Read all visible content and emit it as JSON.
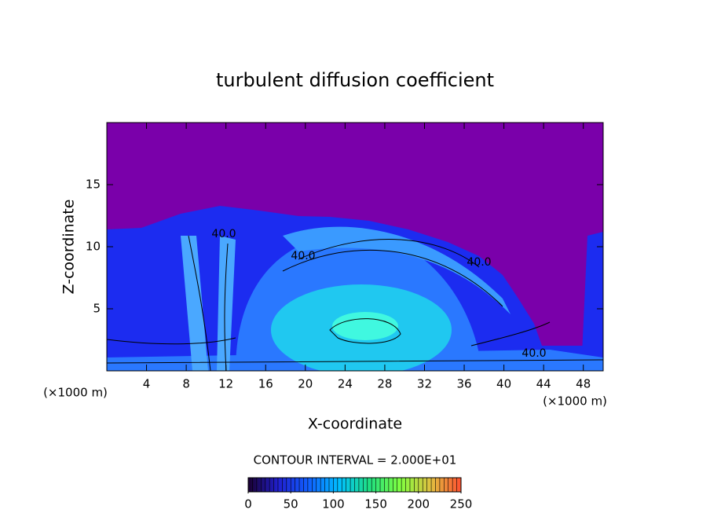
{
  "chart_data": {
    "type": "contour",
    "title": "turbulent diffusion coefficient",
    "x_label": "X-coordinate",
    "y_label": "Z-coordinate",
    "x_unit": "(×1000 m)",
    "xlim": [
      0,
      50
    ],
    "xticks": [
      4,
      8,
      12,
      16,
      20,
      24,
      28,
      32,
      36,
      40,
      44,
      48
    ],
    "ylim": [
      0,
      20
    ],
    "yticks": [
      5,
      10,
      15
    ],
    "contour_interval_text": "CONTOUR INTERVAL = 2.000E+01",
    "contour_labels": [
      {
        "value": 40,
        "label": "40.0"
      },
      {
        "value": 40,
        "label": "40.0"
      },
      {
        "value": 40,
        "label": "40.0"
      },
      {
        "value": 40,
        "label": "40.0"
      }
    ],
    "colorbar": {
      "lim": [
        0,
        250
      ],
      "ticks": [
        0,
        50,
        100,
        150,
        200,
        250
      ],
      "colors": [
        "#1a0030",
        "#2020d0",
        "#1060ff",
        "#00c0ff",
        "#20e080",
        "#80ff40",
        "#e0c040",
        "#ff5030"
      ]
    }
  }
}
